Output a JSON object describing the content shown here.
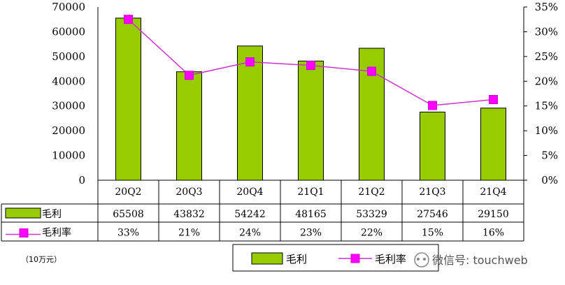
{
  "chart_data": {
    "type": "bar",
    "categories": [
      "20Q2",
      "20Q3",
      "20Q4",
      "21Q1",
      "21Q2",
      "21Q3",
      "21Q4"
    ],
    "series": [
      {
        "name": "毛利",
        "type": "bar",
        "axis": "left",
        "values": [
          65508,
          43832,
          54242,
          48165,
          53329,
          27546,
          29150
        ]
      },
      {
        "name": "毛利率",
        "type": "line",
        "axis": "right",
        "values": [
          32.5,
          21.2,
          23.9,
          23.2,
          22.0,
          15.1,
          16.3
        ],
        "labels": [
          "33%",
          "21%",
          "24%",
          "23%",
          "22%",
          "15%",
          "16%"
        ]
      }
    ],
    "ylim": [
      0,
      70000
    ],
    "yticks": [
      "70000",
      "60000",
      "50000",
      "40000",
      "30000",
      "20000",
      "10000",
      "0"
    ],
    "y2lim": [
      0,
      35
    ],
    "y2ticks": [
      "35%",
      "30%",
      "25%",
      "20%",
      "15%",
      "10%",
      "5%",
      "0%"
    ],
    "table_rows": [
      {
        "name": "毛利",
        "cells": [
          "65508",
          "43832",
          "54242",
          "48165",
          "53329",
          "27546",
          "29150"
        ]
      },
      {
        "name": "毛利率",
        "cells": [
          "33%",
          "21%",
          "24%",
          "23%",
          "22%",
          "15%",
          "16%"
        ]
      }
    ],
    "unit_note": "（10万元）",
    "legend": [
      "毛利",
      "毛利率"
    ],
    "colors": {
      "bar": "#99cc00",
      "line": "#cc33cc",
      "marker": "#ff00ff"
    },
    "grid": false
  },
  "watermark": "微信号: touchweb"
}
